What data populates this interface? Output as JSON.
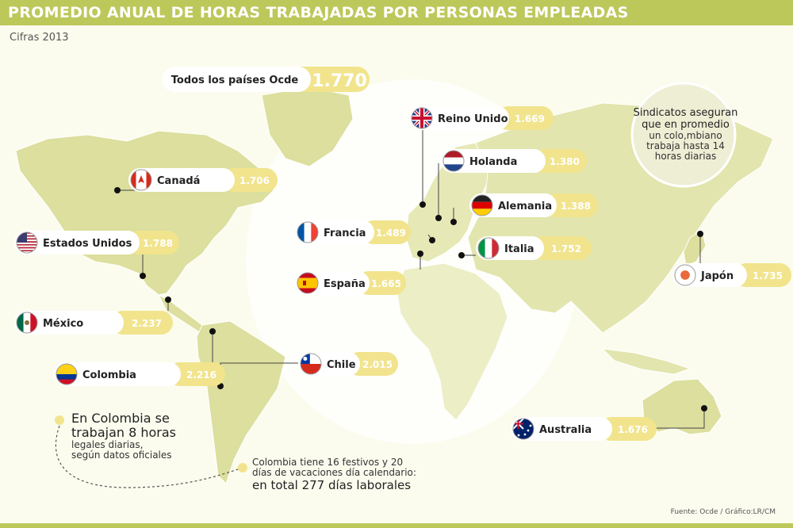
{
  "title": "PROMEDIO ANUAL DE HORAS TRABAJADAS POR PERSONAS EMPLEADAS",
  "subtitle": "Cifras 2013",
  "source": "Fuente: Ocde / Gráfico:LR/CM",
  "colors": {
    "accent": "#bcc85a",
    "land": "#dfe4a3",
    "land_light": "#eef0cc",
    "value_box": "#f1e48d",
    "text_dark": "#222222"
  },
  "notes": {
    "colombia_big": [
      "En Colombia se",
      "trabajan 8 horas"
    ],
    "colombia_small": [
      "legales diarias,",
      "según datos oficiales"
    ],
    "holidays_small": [
      "Colombia tiene 16 festivos y 20",
      "días de vacaciones día calendario:"
    ],
    "holidays_big": "en total 277 días laborales",
    "unions_big": [
      "Sindicatos aseguran",
      "que en promedio"
    ],
    "unions_small": [
      "un colo,mbiano",
      "trabaja hasta 14",
      "horas diarias"
    ]
  },
  "chart_data": {
    "type": "table",
    "title": "PROMEDIO ANUAL DE HORAS TRABAJADAS POR PERSONAS EMPLEADAS",
    "subtitle": "Cifras 2013",
    "units": "horas anuales",
    "overall": {
      "label": "Todos los países Ocde",
      "value": 1770,
      "value_text": "1.770"
    },
    "categories": [
      "Reino Unido",
      "Holanda",
      "Canadá",
      "Alemania",
      "Estados Unidos",
      "Francia",
      "Italia",
      "Japón",
      "España",
      "México",
      "Chile",
      "Colombia",
      "Australia"
    ],
    "values": [
      1669,
      1380,
      1706,
      1388,
      1788,
      1489,
      1752,
      1735,
      1665,
      2237,
      2015,
      2216,
      1676
    ],
    "value_texts": [
      "1.669",
      "1.380",
      "1.706",
      "1.388",
      "1.788",
      "1.489",
      "1.752",
      "1.735",
      "1.665",
      "2.237",
      "2.015",
      "2.216",
      "1.676"
    ],
    "flags": [
      "uk-flag-icon",
      "netherlands-flag-icon",
      "canada-flag-icon",
      "germany-flag-icon",
      "usa-flag-icon",
      "france-flag-icon",
      "italy-flag-icon",
      "japan-flag-icon",
      "spain-flag-icon",
      "mexico-flag-icon",
      "chile-flag-icon",
      "colombia-flag-icon",
      "australia-flag-icon"
    ]
  }
}
